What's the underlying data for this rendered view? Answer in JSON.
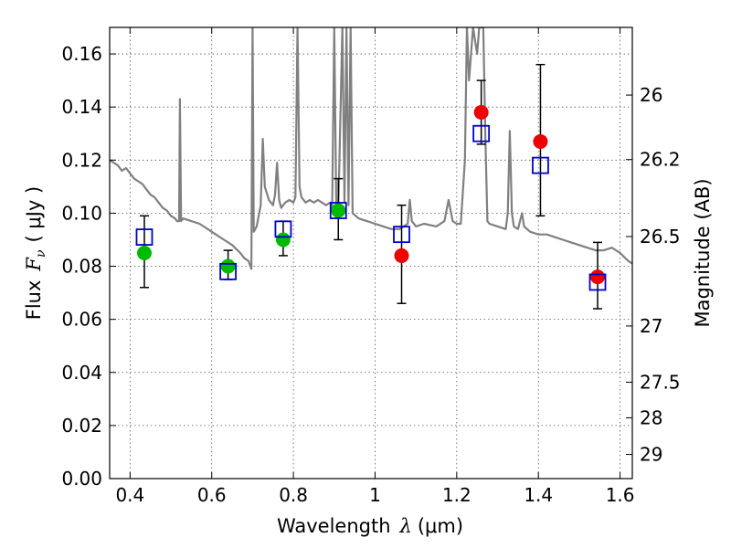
{
  "chart_data": {
    "type": "scatter",
    "title": "",
    "xlabel": {
      "text": "Wavelength",
      "symbol": "λ",
      "unit": "(μm)"
    },
    "ylabel": {
      "text": "Flux",
      "symbol": "F",
      "subscript": "ν",
      "unit": "( μJy )"
    },
    "y2label": "Magnitude (AB)",
    "xlim": [
      0.35,
      1.63
    ],
    "ylim": [
      0.0,
      0.17
    ],
    "grid": true,
    "x_ticks": [
      0.4,
      0.6,
      0.8,
      1.0,
      1.2,
      1.4,
      1.6
    ],
    "x_tick_labels": [
      "0.4",
      "0.6",
      "0.8",
      "1",
      "1.2",
      "1.4",
      "1.6"
    ],
    "y_ticks": [
      0.0,
      0.02,
      0.04,
      0.06,
      0.08,
      0.1,
      0.12,
      0.14,
      0.16
    ],
    "y_tick_labels": [
      "0.00",
      "0.02",
      "0.04",
      "0.06",
      "0.08",
      "0.10",
      "0.12",
      "0.14",
      "0.16"
    ],
    "y2_ticks": [
      {
        "label": "26",
        "flux": 0.1445
      },
      {
        "label": "26.2",
        "flux": 0.1202
      },
      {
        "label": "26.5",
        "flux": 0.0912
      },
      {
        "label": "27",
        "flux": 0.0575
      },
      {
        "label": "27.5",
        "flux": 0.0363
      },
      {
        "label": "28",
        "flux": 0.0229
      },
      {
        "label": "29",
        "flux": 0.0091
      }
    ],
    "colors": {
      "spectrum": "#808080",
      "model": "#0000cc",
      "observed_green": "#00bb00",
      "observed_red": "#ee0000",
      "errorbar": "#000000",
      "grid": "#555555"
    },
    "series": [
      {
        "marker": "open-square",
        "color": "#0000cc",
        "points": [
          {
            "x": 0.435,
            "y": 0.091
          },
          {
            "x": 0.64,
            "y": 0.078
          },
          {
            "x": 0.775,
            "y": 0.094
          },
          {
            "x": 0.91,
            "y": 0.101
          },
          {
            "x": 1.065,
            "y": 0.092
          },
          {
            "x": 1.26,
            "y": 0.13
          },
          {
            "x": 1.405,
            "y": 0.118
          },
          {
            "x": 1.545,
            "y": 0.074
          }
        ]
      },
      {
        "marker": "filled-circle",
        "color": "#00bb00",
        "points": [
          {
            "x": 0.435,
            "y": 0.085,
            "yerr_low": 0.072,
            "yerr_high": 0.099
          },
          {
            "x": 0.64,
            "y": 0.08,
            "yerr_low": 0.075,
            "yerr_high": 0.086
          },
          {
            "x": 0.775,
            "y": 0.09,
            "yerr_low": 0.084,
            "yerr_high": 0.097
          },
          {
            "x": 0.91,
            "y": 0.101,
            "yerr_low": 0.09,
            "yerr_high": 0.113
          }
        ]
      },
      {
        "marker": "filled-circle",
        "color": "#ee0000",
        "points": [
          {
            "x": 1.065,
            "y": 0.084,
            "yerr_low": 0.066,
            "yerr_high": 0.103
          },
          {
            "x": 1.26,
            "y": 0.138,
            "yerr_low": 0.126,
            "yerr_high": 0.15
          },
          {
            "x": 1.405,
            "y": 0.127,
            "yerr_low": 0.099,
            "yerr_high": 0.156
          },
          {
            "x": 1.545,
            "y": 0.076,
            "yerr_low": 0.064,
            "yerr_high": 0.089
          }
        ]
      }
    ],
    "spectrum": [
      [
        0.35,
        0.12
      ],
      [
        0.36,
        0.119
      ],
      [
        0.37,
        0.118
      ],
      [
        0.38,
        0.116
      ],
      [
        0.39,
        0.117
      ],
      [
        0.4,
        0.115
      ],
      [
        0.41,
        0.113
      ],
      [
        0.42,
        0.112
      ],
      [
        0.43,
        0.111
      ],
      [
        0.44,
        0.109
      ],
      [
        0.45,
        0.107
      ],
      [
        0.46,
        0.106
      ],
      [
        0.47,
        0.104
      ],
      [
        0.48,
        0.102
      ],
      [
        0.49,
        0.101
      ],
      [
        0.5,
        0.099
      ],
      [
        0.51,
        0.098
      ],
      [
        0.515,
        0.097
      ],
      [
        0.52,
        0.097
      ],
      [
        0.522,
        0.143
      ],
      [
        0.525,
        0.097
      ],
      [
        0.53,
        0.098
      ],
      [
        0.55,
        0.097
      ],
      [
        0.57,
        0.096
      ],
      [
        0.59,
        0.094
      ],
      [
        0.61,
        0.092
      ],
      [
        0.63,
        0.09
      ],
      [
        0.65,
        0.088
      ],
      [
        0.67,
        0.085
      ],
      [
        0.68,
        0.083
      ],
      [
        0.69,
        0.082
      ],
      [
        0.697,
        0.079
      ],
      [
        0.7,
        0.17
      ],
      [
        0.703,
        0.093
      ],
      [
        0.71,
        0.095
      ],
      [
        0.72,
        0.103
      ],
      [
        0.725,
        0.128
      ],
      [
        0.73,
        0.11
      ],
      [
        0.74,
        0.105
      ],
      [
        0.75,
        0.103
      ],
      [
        0.755,
        0.107
      ],
      [
        0.76,
        0.119
      ],
      [
        0.765,
        0.105
      ],
      [
        0.77,
        0.102
      ],
      [
        0.78,
        0.104
      ],
      [
        0.79,
        0.105
      ],
      [
        0.8,
        0.104
      ],
      [
        0.805,
        0.106
      ],
      [
        0.81,
        0.17
      ],
      [
        0.815,
        0.11
      ],
      [
        0.82,
        0.106
      ],
      [
        0.83,
        0.104
      ],
      [
        0.84,
        0.105
      ],
      [
        0.85,
        0.104
      ],
      [
        0.86,
        0.105
      ],
      [
        0.87,
        0.104
      ],
      [
        0.88,
        0.103
      ],
      [
        0.89,
        0.104
      ],
      [
        0.895,
        0.102
      ],
      [
        0.9,
        0.17
      ],
      [
        0.905,
        0.103
      ],
      [
        0.91,
        0.102
      ],
      [
        0.92,
        0.17
      ],
      [
        0.925,
        0.104
      ],
      [
        0.93,
        0.17
      ],
      [
        0.935,
        0.103
      ],
      [
        0.94,
        0.17
      ],
      [
        0.945,
        0.1
      ],
      [
        0.96,
        0.098
      ],
      [
        0.98,
        0.097
      ],
      [
        1.0,
        0.096
      ],
      [
        1.02,
        0.095
      ],
      [
        1.04,
        0.094
      ],
      [
        1.06,
        0.094
      ],
      [
        1.08,
        0.096
      ],
      [
        1.085,
        0.105
      ],
      [
        1.09,
        0.097
      ],
      [
        1.1,
        0.095
      ],
      [
        1.12,
        0.096
      ],
      [
        1.15,
        0.095
      ],
      [
        1.17,
        0.097
      ],
      [
        1.18,
        0.105
      ],
      [
        1.19,
        0.097
      ],
      [
        1.2,
        0.096
      ],
      [
        1.21,
        0.096
      ],
      [
        1.22,
        0.12
      ],
      [
        1.225,
        0.17
      ],
      [
        1.23,
        0.15
      ],
      [
        1.24,
        0.17
      ],
      [
        1.25,
        0.16
      ],
      [
        1.255,
        0.17
      ],
      [
        1.265,
        0.17
      ],
      [
        1.27,
        0.13
      ],
      [
        1.275,
        0.097
      ],
      [
        1.28,
        0.096
      ],
      [
        1.3,
        0.095
      ],
      [
        1.32,
        0.094
      ],
      [
        1.325,
        0.1
      ],
      [
        1.33,
        0.131
      ],
      [
        1.335,
        0.1
      ],
      [
        1.34,
        0.095
      ],
      [
        1.35,
        0.094
      ],
      [
        1.36,
        0.1
      ],
      [
        1.365,
        0.095
      ],
      [
        1.38,
        0.093
      ],
      [
        1.4,
        0.092
      ],
      [
        1.42,
        0.092
      ],
      [
        1.44,
        0.091
      ],
      [
        1.46,
        0.09
      ],
      [
        1.48,
        0.089
      ],
      [
        1.5,
        0.088
      ],
      [
        1.52,
        0.087
      ],
      [
        1.54,
        0.086
      ],
      [
        1.56,
        0.086
      ],
      [
        1.58,
        0.087
      ],
      [
        1.6,
        0.085
      ],
      [
        1.62,
        0.082
      ],
      [
        1.63,
        0.081
      ]
    ]
  }
}
